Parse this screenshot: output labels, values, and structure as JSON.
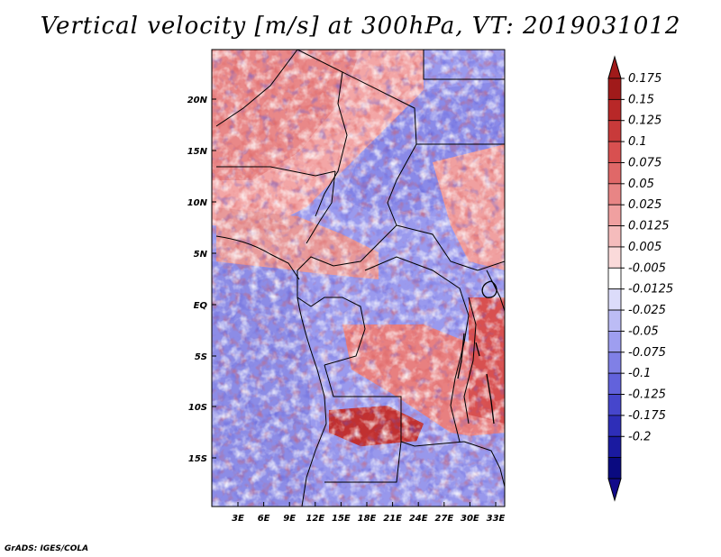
{
  "title": "Vertical velocity [m/s] at 300hPa, VT: 2019031012",
  "credit": "GrADS: IGES/COLA",
  "map": {
    "lat_labels": [
      "20N",
      "15N",
      "10N",
      "5N",
      "EQ",
      "5S",
      "10S",
      "15S"
    ],
    "lon_labels": [
      "3E",
      "6E",
      "9E",
      "12E",
      "15E",
      "18E",
      "21E",
      "24E",
      "27E",
      "30E",
      "33E"
    ],
    "variable": "vertical velocity",
    "units": "m/s",
    "level": "300hPa",
    "valid_time": "2019031012"
  },
  "colorbar": {
    "labels": [
      "0.175",
      "0.15",
      "0.125",
      "0.1",
      "0.075",
      "0.05",
      "0.025",
      "0.0125",
      "0.005",
      "-0.005",
      "-0.0125",
      "-0.025",
      "-0.05",
      "-0.075",
      "-0.1",
      "-0.125",
      "-0.175",
      "-0.2"
    ],
    "colors": [
      "#a01a1a",
      "#b82828",
      "#c83a3a",
      "#d85050",
      "#e06868",
      "#e88585",
      "#f0a0a0",
      "#f5bcbc",
      "#fadada",
      "#ffffff",
      "#dcdcfa",
      "#bcbcf5",
      "#9e9ef0",
      "#8080e6",
      "#6262dc",
      "#4646cc",
      "#2e2eb8",
      "#1a1aa0",
      "#0a0a80"
    ],
    "extend_top_color": "#a01a1a",
    "extend_bottom_color": "#120a8a"
  }
}
